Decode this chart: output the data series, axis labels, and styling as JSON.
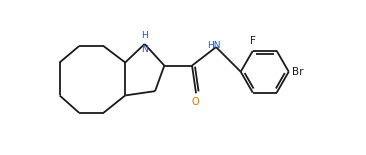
{
  "background_color": "#ffffff",
  "bond_color": "#1a1a1a",
  "atom_colors": {
    "NH": "#1155cc",
    "HN": "#1155cc",
    "O": "#cc7700",
    "F": "#1a1a1a",
    "Br": "#1a1a1a"
  },
  "atom_labels": {
    "NH": "H\nN",
    "HN": "HN",
    "O": "O",
    "F": "F",
    "Br": "Br"
  },
  "figsize": [
    3.66,
    1.55
  ],
  "dpi": 100,
  "xlim": [
    0,
    9.15
  ],
  "ylim": [
    0,
    3.875
  ]
}
